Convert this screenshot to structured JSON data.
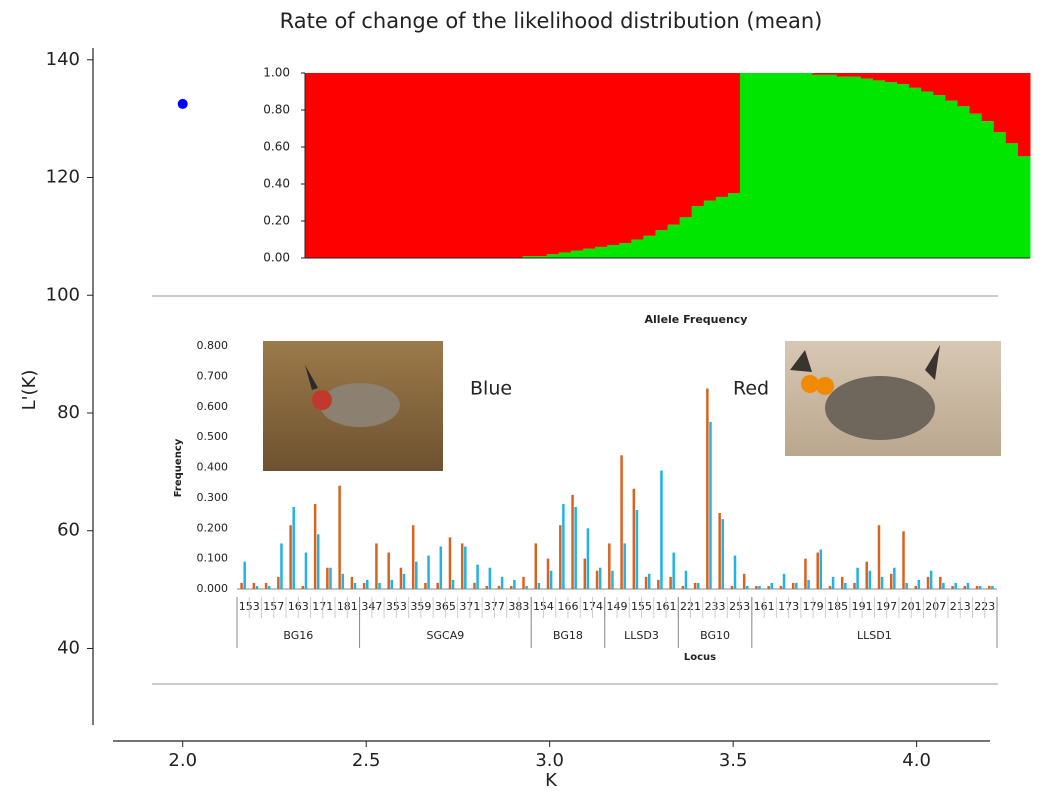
{
  "chart_data": [
    {
      "type": "scatter",
      "title": "Rate of change of the likelihood distribution (mean)",
      "x_label": "K",
      "y_label": "L'(K)",
      "x": [
        2.0
      ],
      "y": [
        132.5
      ],
      "color": "#0000ff",
      "xlim": [
        1.81,
        4.2
      ],
      "ylim": [
        27,
        142
      ],
      "xticks": [
        {
          "value": 2,
          "label": "2.0"
        },
        {
          "value": 2.5,
          "label": "2.5"
        },
        {
          "value": 3,
          "label": "3.0"
        },
        {
          "value": 3.5,
          "label": "3.5"
        },
        {
          "value": 4,
          "label": "4.0"
        }
      ],
      "yticks": [
        40,
        60,
        80,
        100,
        120,
        140
      ]
    },
    {
      "type": "structure",
      "series": [
        {
          "color": "#00e600",
          "values": [
            0,
            0,
            0,
            0,
            0,
            0,
            0,
            0,
            0,
            0,
            0,
            0,
            0,
            0,
            0,
            0,
            0,
            0,
            0.01,
            0.01,
            0.02,
            0.03,
            0.04,
            0.05,
            0.06,
            0.07,
            0.08,
            0.1,
            0.12,
            0.15,
            0.18,
            0.22,
            0.28,
            0.31,
            0.33,
            0.35,
            1,
            1,
            1,
            1,
            1,
            1,
            0.99,
            0.99,
            0.98,
            0.98,
            0.97,
            0.96,
            0.95,
            0.94,
            0.92,
            0.9,
            0.88,
            0.85,
            0.82,
            0.78,
            0.74,
            0.68,
            0.62,
            0.55
          ]
        },
        {
          "color": "#ff0000",
          "values": [
            1,
            1,
            1,
            1,
            1,
            1,
            1,
            1,
            1,
            1,
            1,
            1,
            1,
            1,
            1,
            1,
            1,
            1,
            0.99,
            0.99,
            0.98,
            0.97,
            0.96,
            0.95,
            0.94,
            0.93,
            0.92,
            0.9,
            0.88,
            0.85,
            0.82,
            0.78,
            0.72,
            0.69,
            0.67,
            0.65,
            0,
            0,
            0,
            0,
            0,
            0,
            0.01,
            0.01,
            0.02,
            0.02,
            0.03,
            0.04,
            0.05,
            0.06,
            0.08,
            0.1,
            0.12,
            0.15,
            0.18,
            0.22,
            0.26,
            0.32,
            0.38,
            0.45
          ]
        }
      ],
      "ylim": [
        0,
        1
      ],
      "yticks": [
        {
          "value": 0,
          "label": "0.00"
        },
        {
          "value": 0.2,
          "label": "0.20"
        },
        {
          "value": 0.4,
          "label": "0.40"
        },
        {
          "value": 0.6,
          "label": "0.60"
        },
        {
          "value": 0.8,
          "label": "0.80"
        },
        {
          "value": 1,
          "label": "1.00"
        }
      ]
    },
    {
      "type": "grouped-bar",
      "title": "Allele Frequency",
      "x_label": "Locus",
      "y_label": "Frequency",
      "loci": [
        {
          "name": "BG16",
          "alleles": [
            153,
            null,
            157,
            null,
            163,
            null,
            171,
            null,
            181,
            null
          ]
        },
        {
          "name": "SGCA9",
          "alleles": [
            347,
            null,
            353,
            null,
            359,
            null,
            365,
            null,
            371,
            null,
            377,
            null,
            383,
            null
          ]
        },
        {
          "name": "BG18",
          "alleles": [
            154,
            null,
            166,
            null,
            174,
            null
          ]
        },
        {
          "name": "LLSD3",
          "alleles": [
            149,
            null,
            155,
            null,
            161,
            null
          ]
        },
        {
          "name": "BG10",
          "alleles": [
            221,
            null,
            233,
            null,
            253,
            null
          ]
        },
        {
          "name": "LLSD1",
          "alleles": [
            161,
            null,
            173,
            null,
            179,
            null,
            185,
            null,
            191,
            null,
            197,
            null,
            201,
            null,
            207,
            null,
            213,
            null,
            223,
            null
          ]
        }
      ],
      "series": [
        {
          "name": "Red",
          "color": "#d9621e",
          "values": [
            0.02,
            0.02,
            0.02,
            0.04,
            0.21,
            0.01,
            0.28,
            0.07,
            0.34,
            0.04,
            0.02,
            0.15,
            0.12,
            0.07,
            0.21,
            0.02,
            0.02,
            0.17,
            0.15,
            0.02,
            0.01,
            0.01,
            0.01,
            0.04,
            0.15,
            0.1,
            0.21,
            0.31,
            0.1,
            0.06,
            0.15,
            0.44,
            0.33,
            0.04,
            0.03,
            0.04,
            0.01,
            0.02,
            0.66,
            0.25,
            0.01,
            0.05,
            0.01,
            0.01,
            0.01,
            0.02,
            0.1,
            0.12,
            0.01,
            0.04,
            0.02,
            0.09,
            0.21,
            0.05,
            0.19,
            0.01,
            0.04,
            0.04,
            0.01,
            0.01,
            0.01,
            0.01
          ]
        },
        {
          "name": "Blue",
          "color": "#1fb3e6",
          "values": [
            0.09,
            0.01,
            0.01,
            0.15,
            0.27,
            0.12,
            0.18,
            0.07,
            0.05,
            0.02,
            0.03,
            0.02,
            0.03,
            0.05,
            0.09,
            0.11,
            0.14,
            0.03,
            0.14,
            0.08,
            0.07,
            0.04,
            0.03,
            0.01,
            0.02,
            0.06,
            0.28,
            0.27,
            0.2,
            0.07,
            0.06,
            0.15,
            0.26,
            0.05,
            0.39,
            0.12,
            0.06,
            0.02,
            0.55,
            0.23,
            0.11,
            0.01,
            0.01,
            0.02,
            0.05,
            0.02,
            0.03,
            0.13,
            0.04,
            0.02,
            0.07,
            0.06,
            0.04,
            0.07,
            0.02,
            0.03,
            0.06,
            0.02,
            0.02,
            0.02,
            0.01,
            0.01
          ]
        }
      ],
      "ylim": [
        0,
        0.8
      ],
      "yticks": [
        {
          "value": 0,
          "label": "0.000"
        },
        {
          "value": 0.1,
          "label": "0.100"
        },
        {
          "value": 0.2,
          "label": "0.200"
        },
        {
          "value": 0.3,
          "label": "0.300"
        },
        {
          "value": 0.4,
          "label": "0.400"
        },
        {
          "value": 0.5,
          "label": "0.500"
        },
        {
          "value": 0.6,
          "label": "0.600"
        },
        {
          "value": 0.7,
          "label": "0.700"
        },
        {
          "value": 0.8,
          "label": "0.800"
        }
      ]
    }
  ]
}
